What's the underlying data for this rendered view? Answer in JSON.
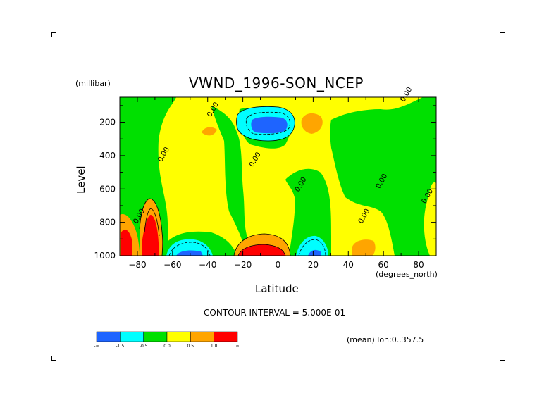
{
  "chart_data": {
    "type": "contour",
    "title": "VWND_1996-SON_NCEP",
    "xlabel": "Latitude",
    "x_unit": "(degrees_north)",
    "ylabel": "Level",
    "y_unit": "(millibar)",
    "xlim": [
      -90,
      90
    ],
    "ylim": [
      1000,
      50
    ],
    "y_inverted": true,
    "x_ticks": [
      -80,
      -60,
      -40,
      -20,
      0,
      20,
      40,
      60,
      80
    ],
    "y_ticks": [
      200,
      400,
      600,
      800,
      1000
    ],
    "contour_interval_text": "CONTOUR INTERVAL = 5.000E-01",
    "contour_labels": [
      {
        "text": "0.00",
        "lat": -64,
        "lev": 400
      },
      {
        "text": "0.00",
        "lat": -36,
        "lev": 130
      },
      {
        "text": "0.00",
        "lat": -12,
        "lev": 430
      },
      {
        "text": "0.00",
        "lat": 14,
        "lev": 580
      },
      {
        "text": "0.00",
        "lat": 50,
        "lev": 770
      },
      {
        "text": "0.00",
        "lat": 60,
        "lev": 560
      },
      {
        "text": "0.00",
        "lat": 74,
        "lev": 40
      },
      {
        "text": "0.00",
        "lat": 86,
        "lev": 650
      },
      {
        "text": "0.00",
        "lat": -78,
        "lev": 770
      }
    ],
    "colorbar": {
      "colors": [
        "#1e64ff",
        "#00ffff",
        "#00e000",
        "#ffff00",
        "#ffa500",
        "#ff0000"
      ],
      "labels": [
        "-∞",
        "-1.5",
        "-0.5",
        "0.0",
        "0.5",
        "1.0",
        "∞"
      ]
    },
    "note": "(mean) lon:0..357.5",
    "grid": false
  }
}
